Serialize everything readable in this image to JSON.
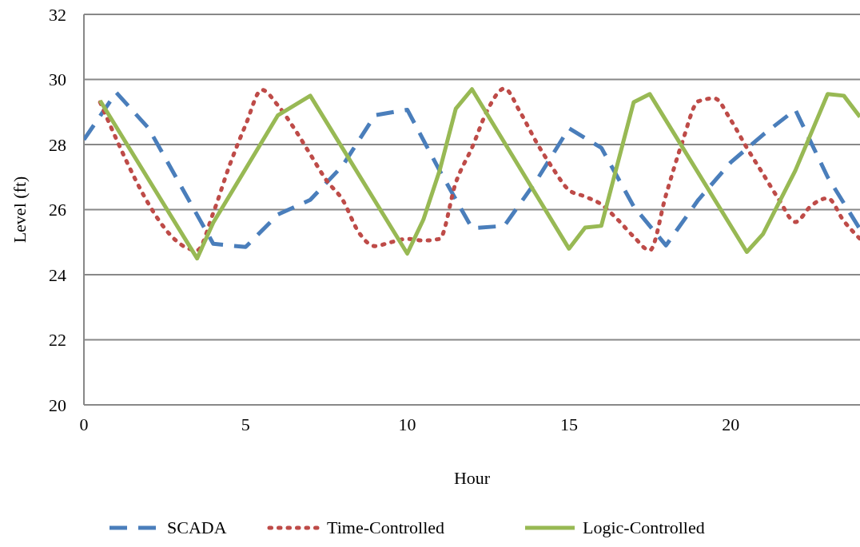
{
  "chart_data": {
    "type": "line",
    "xlabel": "Hour",
    "ylabel": "Level (ft)",
    "xlim": [
      0,
      24
    ],
    "xticks": [
      0,
      5,
      10,
      15,
      20
    ],
    "ylim": [
      20,
      32
    ],
    "yticks": [
      20,
      22,
      24,
      26,
      28,
      30,
      32
    ],
    "grid": "y",
    "legend": "bottom",
    "series": [
      {
        "name": "SCADA",
        "color": "#4a7ebb",
        "line_style": "dashed",
        "x": [
          0,
          1,
          2,
          4,
          5,
          6,
          7,
          8,
          9,
          10,
          11,
          12,
          13,
          14,
          15,
          16,
          17,
          18,
          19,
          20,
          21,
          22,
          23,
          24
        ],
        "values": [
          28.15,
          29.6,
          28.5,
          24.95,
          24.85,
          25.85,
          26.3,
          27.35,
          28.9,
          29.07,
          27.2,
          25.43,
          25.5,
          26.9,
          28.5,
          27.9,
          26.1,
          24.9,
          26.3,
          27.45,
          28.3,
          29.07,
          27.0,
          25.4
        ]
      },
      {
        "name": "Time-Controlled",
        "color": "#be4b48",
        "line_style": "dotted",
        "x": [
          0.5,
          3.5,
          4,
          4.5,
          5,
          5.5,
          6,
          6.5,
          7,
          7.5,
          8,
          8.5,
          9,
          9.5,
          10,
          10.5,
          11,
          11.5,
          12,
          12.5,
          13,
          13.5,
          14,
          14.5,
          15,
          15.5,
          16,
          16.5,
          17,
          17.5,
          18,
          18.5,
          19,
          19.5,
          20,
          20.5,
          21,
          21.5,
          22,
          22.5,
          23,
          23.5,
          24
        ],
        "values": [
          29.3,
          24.75,
          25.9,
          27.35,
          28.6,
          29.68,
          29.2,
          28.5,
          27.7,
          26.9,
          26.3,
          25.3,
          24.88,
          25.0,
          25.1,
          25.05,
          25.1,
          26.83,
          27.9,
          29.1,
          29.72,
          28.98,
          28.06,
          27.27,
          26.6,
          26.4,
          26.16,
          25.7,
          25.17,
          24.75,
          26.45,
          28.06,
          29.33,
          29.42,
          28.76,
          27.9,
          27.1,
          26.3,
          25.62,
          26.13,
          26.35,
          25.65,
          25.1
        ]
      },
      {
        "name": "Logic-Controlled",
        "color": "#98b954",
        "line_style": "solid",
        "x": [
          0.5,
          3.5,
          4,
          6,
          7,
          10,
          10.5,
          11,
          11.5,
          12,
          15,
          15.5,
          16,
          17,
          17.5,
          20.5,
          21,
          22,
          23,
          23.5,
          24
        ],
        "values": [
          29.35,
          24.5,
          25.6,
          28.9,
          29.5,
          24.65,
          25.7,
          27.2,
          29.1,
          29.7,
          24.8,
          25.45,
          25.5,
          29.3,
          29.55,
          24.7,
          25.25,
          27.2,
          29.55,
          29.5,
          28.85
        ]
      }
    ]
  }
}
